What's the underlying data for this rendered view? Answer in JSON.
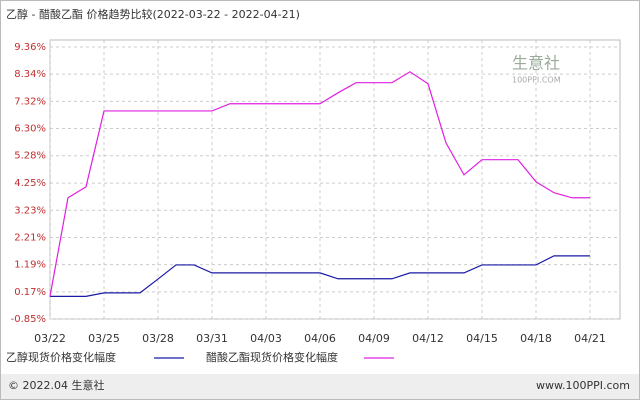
{
  "chart_data": {
    "type": "line",
    "title": "乙醇 - 醋酸乙酯 价格趋势比较(2022-03-22 - 2022-04-21)",
    "categories": [
      "03/22",
      null,
      null,
      "03/25",
      null,
      null,
      "03/28",
      null,
      null,
      "03/31",
      null,
      null,
      "04/03",
      null,
      null,
      "04/06",
      null,
      null,
      "04/09",
      null,
      null,
      "04/12",
      null,
      null,
      "04/15",
      null,
      null,
      "04/18",
      null,
      null,
      "04/21"
    ],
    "series": [
      {
        "name": "乙醇现货价格变化幅度",
        "color": "#1a1aa6",
        "values": [
          0,
          0,
          0,
          0.13,
          0.13,
          0.13,
          0.65,
          1.18,
          1.18,
          0.88,
          0.88,
          0.88,
          0.88,
          0.88,
          0.88,
          0.88,
          0.66,
          0.66,
          0.66,
          0.66,
          0.88,
          0.88,
          0.88,
          0.88,
          1.18,
          1.18,
          1.18,
          1.18,
          1.52,
          1.52,
          1.52
        ]
      },
      {
        "name": "醋酸乙酯现货价格变化幅度",
        "color": "#e020e0",
        "values": [
          0,
          3.7,
          4.11,
          6.96,
          6.96,
          6.96,
          6.96,
          6.96,
          6.96,
          6.96,
          7.23,
          7.23,
          7.23,
          7.23,
          7.23,
          7.23,
          7.64,
          8.02,
          8.02,
          8.02,
          8.43,
          7.98,
          5.76,
          4.56,
          5.13,
          5.13,
          5.13,
          4.3,
          3.89,
          3.7,
          3.7
        ]
      }
    ],
    "ylim": [
      -0.85,
      9.36
    ],
    "yticks": [
      {
        "value": -0.85,
        "label": "-0.85%"
      },
      {
        "value": 0.17,
        "label": "0.17%"
      },
      {
        "value": 1.19,
        "label": "1.19%"
      },
      {
        "value": 2.21,
        "label": "2.21%"
      },
      {
        "value": 3.23,
        "label": "3.23%"
      },
      {
        "value": 4.25,
        "label": "4.25%"
      },
      {
        "value": 5.28,
        "label": "5.28%"
      },
      {
        "value": 6.3,
        "label": "6.30%"
      },
      {
        "value": 7.32,
        "label": "7.32%"
      },
      {
        "value": 8.34,
        "label": "8.34%"
      },
      {
        "value": 9.36,
        "label": "9.36%"
      }
    ],
    "grid": true,
    "watermark": [
      "生意社",
      "100PPI.COM"
    ],
    "footer": [
      "© 2022.04 生意社",
      "www.100PPI.com"
    ]
  }
}
